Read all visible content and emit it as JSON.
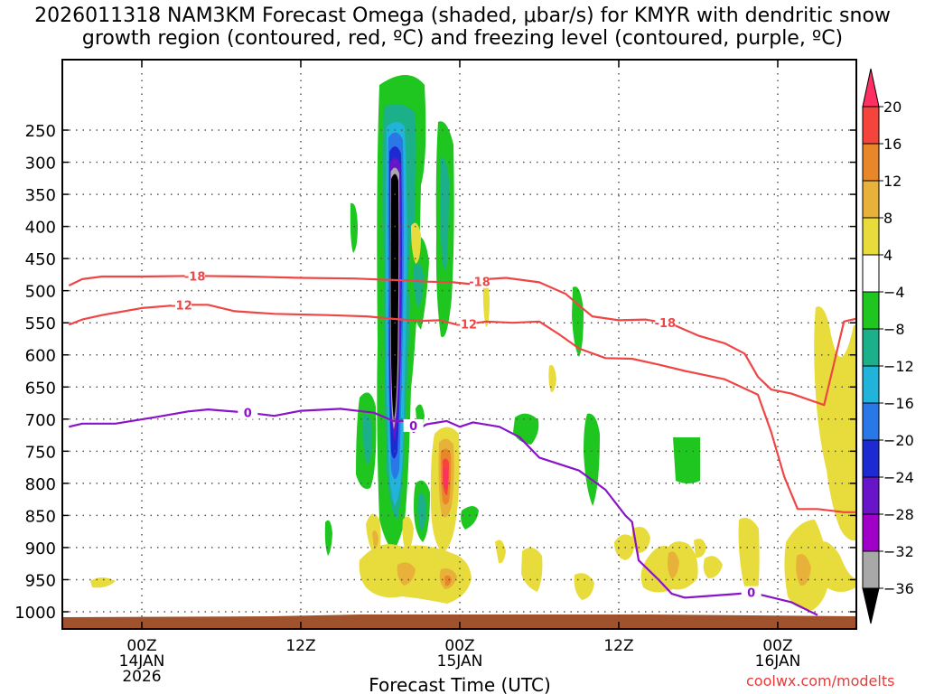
{
  "chart_data": {
    "type": "heatmap",
    "title_line1": "2026011318 NAM3KM Forecast Omega (shaded, μbar/s) for KMYR with dendritic snow",
    "title_line2": "growth region (contoured, red, ºC) and freezing level (contoured, purple, ºC)",
    "xlabel": "Forecast Time (UTC)",
    "credit": "coolwx.com/modelts",
    "x_range_hours": [
      -5.5,
      54.5
    ],
    "y_range_hpa": [
      1020,
      190
    ],
    "x_ticks": [
      {
        "hour": 0,
        "label": "00Z",
        "sub1": "14JAN",
        "sub2": "2026"
      },
      {
        "hour": 12,
        "label": "12Z",
        "sub1": "",
        "sub2": ""
      },
      {
        "hour": 24,
        "label": "00Z",
        "sub1": "15JAN",
        "sub2": ""
      },
      {
        "hour": 36,
        "label": "12Z",
        "sub1": "",
        "sub2": ""
      },
      {
        "hour": 48,
        "label": "00Z",
        "sub1": "16JAN",
        "sub2": ""
      }
    ],
    "y_ticks": [
      250,
      300,
      350,
      400,
      450,
      500,
      550,
      600,
      650,
      700,
      750,
      800,
      850,
      900,
      950,
      1000
    ],
    "colorbar": {
      "labels": [
        "20",
        "16",
        "12",
        "8",
        "4",
        "−4",
        "−8",
        "−12",
        "−16",
        "−20",
        "−24",
        "−28",
        "−32",
        "−36"
      ],
      "colors": [
        "#ff2e63",
        "#f5443c",
        "#e8862a",
        "#e8b23a",
        "#e8dc3c",
        "#ffffff",
        "#1fc61f",
        "#1cb08a",
        "#21b3d9",
        "#2a78e8",
        "#1e2ad1",
        "#6a14c9",
        "#a000c8",
        "#a8a8a8",
        "#000000"
      ]
    },
    "contours": [
      {
        "name": "-18",
        "color": "#f04545",
        "points": [
          [
            -5.5,
            492
          ],
          [
            -4.5,
            482
          ],
          [
            -3,
            478
          ],
          [
            0,
            478
          ],
          [
            4,
            477
          ],
          [
            8,
            478
          ],
          [
            12,
            480
          ],
          [
            16,
            481
          ],
          [
            18.5,
            483
          ],
          [
            20,
            484
          ],
          [
            21.5,
            486
          ],
          [
            23.5,
            487
          ],
          [
            25,
            490
          ],
          [
            26,
            482
          ],
          [
            27.5,
            480
          ],
          [
            30,
            487
          ],
          [
            32,
            505
          ],
          [
            33,
            523
          ],
          [
            34,
            540
          ],
          [
            36,
            546
          ],
          [
            38,
            545
          ],
          [
            40,
            552
          ],
          [
            42,
            570
          ],
          [
            44,
            582
          ],
          [
            45.5,
            598
          ],
          [
            46.5,
            634
          ],
          [
            47.5,
            654
          ],
          [
            49,
            660
          ],
          [
            51.5,
            678
          ],
          [
            53,
            548
          ],
          [
            54.5,
            541
          ]
        ],
        "labels": [
          [
            4,
            477
          ],
          [
            25.5,
            486
          ],
          [
            39.5,
            550
          ]
        ]
      },
      {
        "name": "-12",
        "color": "#f04545",
        "points": [
          [
            -5.5,
            553
          ],
          [
            -4.5,
            545
          ],
          [
            -3,
            538
          ],
          [
            0,
            527
          ],
          [
            3,
            522
          ],
          [
            5,
            522
          ],
          [
            7,
            532
          ],
          [
            10,
            536
          ],
          [
            14,
            538
          ],
          [
            17,
            540
          ],
          [
            19,
            544
          ],
          [
            21,
            547
          ],
          [
            22.5,
            546
          ],
          [
            24,
            554
          ],
          [
            26,
            548
          ],
          [
            28,
            550
          ],
          [
            30,
            548
          ],
          [
            31.5,
            568
          ],
          [
            33,
            590
          ],
          [
            35,
            605
          ],
          [
            37,
            606
          ],
          [
            39,
            615
          ],
          [
            41,
            625
          ],
          [
            44,
            638
          ],
          [
            46.5,
            662
          ],
          [
            47.5,
            720
          ],
          [
            48.5,
            790
          ],
          [
            49.5,
            840
          ],
          [
            51,
            840
          ],
          [
            53,
            845
          ],
          [
            54.5,
            845
          ]
        ],
        "labels": [
          [
            3,
            522
          ],
          [
            24.5,
            552
          ]
        ]
      },
      {
        "name": "0",
        "color": "#8a12c7",
        "points": [
          [
            -5.5,
            712
          ],
          [
            -4.5,
            707
          ],
          [
            -2,
            707
          ],
          [
            1,
            697
          ],
          [
            3.5,
            688
          ],
          [
            5,
            685
          ],
          [
            8,
            690
          ],
          [
            10,
            695
          ],
          [
            12,
            687
          ],
          [
            15,
            684
          ],
          [
            17.5,
            690
          ],
          [
            19,
            703
          ],
          [
            20,
            703
          ],
          [
            20.5,
            720
          ],
          [
            21.5,
            708
          ],
          [
            23,
            703
          ],
          [
            24,
            712
          ],
          [
            25,
            705
          ],
          [
            27,
            712
          ],
          [
            28.5,
            728
          ],
          [
            30,
            760
          ],
          [
            33,
            780
          ],
          [
            35,
            810
          ],
          [
            36.5,
            850
          ],
          [
            37,
            860
          ],
          [
            37.5,
            920
          ],
          [
            39,
            950
          ],
          [
            40,
            972
          ],
          [
            41,
            978
          ],
          [
            45,
            972
          ],
          [
            46,
            970
          ],
          [
            47,
            975
          ],
          [
            49,
            985
          ],
          [
            51,
            1005
          ]
        ],
        "labels": [
          [
            8,
            690
          ],
          [
            20.5,
            710
          ],
          [
            46,
            970
          ]
        ]
      }
    ]
  }
}
